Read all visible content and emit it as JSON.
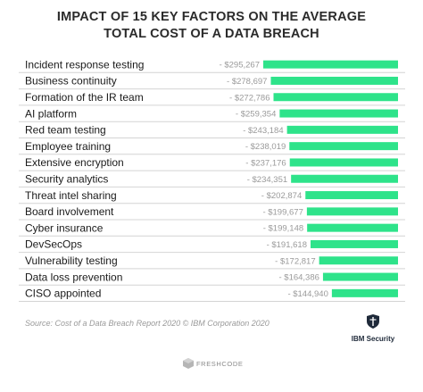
{
  "chart_data": {
    "type": "bar",
    "orientation": "horizontal",
    "title": "IMPACT OF 15 KEY FACTORS ON THE AVERAGE\nTOTAL COST OF A DATA BREACH",
    "categories": [
      "Incident response testing",
      "Business continuity",
      "Formation of the IR team",
      "AI platform",
      "Red team testing",
      "Employee training",
      "Extensive encryption",
      "Security analytics",
      "Threat intel sharing",
      "Board involvement",
      "Cyber insurance",
      "DevSecOps",
      "Vulnerability testing",
      "Data loss prevention",
      "CISO appointed"
    ],
    "values": [
      -295267,
      -278697,
      -272786,
      -259354,
      -243184,
      -238019,
      -237176,
      -234351,
      -202874,
      -199677,
      -199148,
      -191618,
      -172817,
      -164386,
      -144940
    ],
    "value_labels": [
      "- $295,267",
      "- $278,697",
      "- $272,786",
      "- $259,354",
      "- $243,184",
      "- $238,019",
      "- $237,176",
      "- $234,351",
      "- $202,874",
      "- $199,677",
      "- $199,148",
      "- $191,618",
      "- $172,817",
      "- $164,386",
      "- $144,940"
    ],
    "bar_color": "#2ee38a",
    "xlabel": "",
    "ylabel": "",
    "grid": false,
    "legend": "none"
  },
  "source": "Source: Cost of a Data Breach Report 2020 © IBM Corporation 2020",
  "logos": {
    "ibm_label": "IBM Security",
    "freshcode_label": "FRESHCODE"
  },
  "colors": {
    "bar": "#2ee38a",
    "row_line": "#d4d4d4",
    "label": "#1a1a1a",
    "value": "#9a9a9a"
  }
}
